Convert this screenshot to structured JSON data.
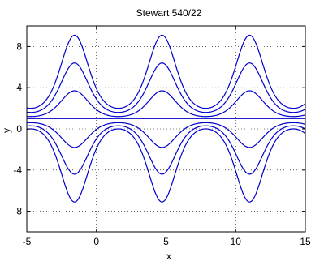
{
  "chart_data": {
    "type": "line",
    "title": "Stewart 540/22",
    "xlabel": "x",
    "ylabel": "y",
    "xlim": [
      -5,
      15
    ],
    "ylim": [
      -10,
      10
    ],
    "xticks": [
      "-5",
      "0",
      "5",
      "10",
      "15"
    ],
    "yticks": [
      "8",
      "4",
      "0",
      "-4",
      "-8"
    ],
    "xtick_values": [
      -5,
      0,
      5,
      10,
      15
    ],
    "ytick_values": [
      8,
      4,
      0,
      -4,
      -8
    ],
    "grid": true,
    "grid_style": "dotted",
    "line_color": "#0000cc",
    "period": 6.2832,
    "series": [
      {
        "kind": "bump",
        "peak_x": -1.5708,
        "min_y": 2.0,
        "max_y": 9.1
      },
      {
        "kind": "bump",
        "peak_x": -1.5708,
        "min_y": 1.6,
        "max_y": 6.4
      },
      {
        "kind": "bump",
        "peak_x": -1.5708,
        "min_y": 1.2,
        "max_y": 3.7
      },
      {
        "kind": "constant",
        "y": 1.0
      },
      {
        "kind": "bump",
        "peak_x": -1.5708,
        "min_y": 0.6,
        "max_y": -1.8
      },
      {
        "kind": "bump",
        "peak_x": -1.5708,
        "min_y": 0.3,
        "max_y": -4.4
      },
      {
        "kind": "bump",
        "peak_x": -1.5708,
        "min_y": 0.0,
        "max_y": -7.1
      }
    ]
  }
}
